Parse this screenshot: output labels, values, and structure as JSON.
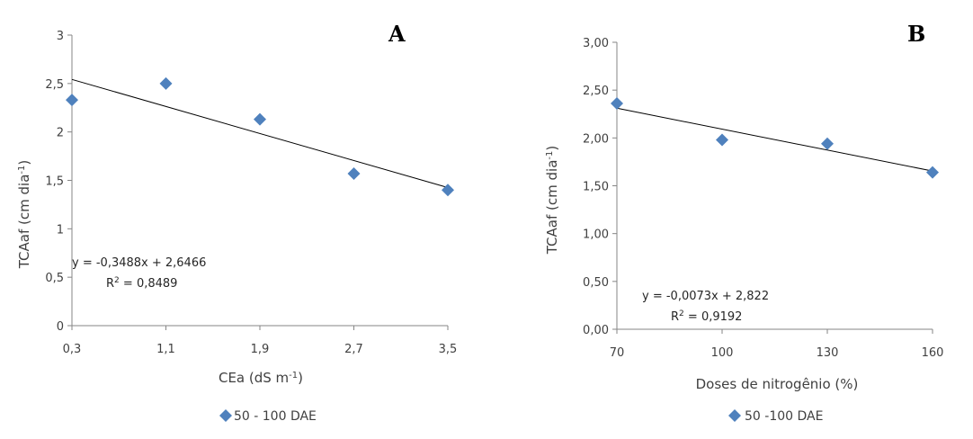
{
  "chart_data": [
    {
      "type": "scatter",
      "panel_letter": "A",
      "xlabel": "CEa (dS m",
      "xlabel_sup": "-1",
      "xlabel_end": ")",
      "ylabel": "TCAaf  (cm dia",
      "ylabel_sup": "-1",
      "ylabel_end": ")",
      "x_ticks": [
        "0,3",
        "1,1",
        "1,9",
        "2,7",
        "3,5"
      ],
      "x_tick_values": [
        0.3,
        1.1,
        1.9,
        2.7,
        3.5
      ],
      "y_ticks": [
        "0",
        "0,5",
        "1",
        "1,5",
        "2",
        "2,5",
        "3"
      ],
      "y_tick_values": [
        0,
        0.5,
        1,
        1.5,
        2,
        2.5,
        3
      ],
      "xlim": [
        0.3,
        3.5
      ],
      "ylim": [
        0,
        3
      ],
      "series": [
        {
          "name": "50 - 100 DAE",
          "color": "#4f81bd",
          "marker": "diamond",
          "x": [
            0.3,
            1.1,
            1.9,
            2.7,
            3.5
          ],
          "y": [
            2.33,
            2.5,
            2.13,
            1.57,
            1.4
          ]
        }
      ],
      "trendline": {
        "slope": -0.3488,
        "intercept": 2.6466,
        "x_from": 0.3,
        "x_to": 3.5
      },
      "equation": "y = -0,3488x + 2,6466",
      "r2_prefix": "R",
      "r2_sup": "2",
      "r2_value": " = 0,8489",
      "legend": "50 - 100 DAE",
      "legend_position": "bottom",
      "grid": false
    },
    {
      "type": "scatter",
      "panel_letter": "B",
      "xlabel": "Doses de nitrogênio (%)",
      "ylabel": "TCAaf  (cm dia",
      "ylabel_sup": "-1",
      "ylabel_end": ")",
      "x_ticks": [
        "70",
        "100",
        "130",
        "160"
      ],
      "x_tick_values": [
        70,
        100,
        130,
        160
      ],
      "y_ticks": [
        "0,00",
        "0,50",
        "1,00",
        "1,50",
        "2,00",
        "2,50",
        "3,00"
      ],
      "y_tick_values": [
        0,
        0.5,
        1,
        1.5,
        2,
        2.5,
        3
      ],
      "xlim": [
        70,
        160
      ],
      "ylim": [
        0,
        3
      ],
      "series": [
        {
          "name": "50 -100 DAE",
          "color": "#4f81bd",
          "marker": "diamond",
          "x": [
            70,
            100,
            130,
            160
          ],
          "y": [
            2.36,
            1.98,
            1.94,
            1.64
          ]
        }
      ],
      "trendline": {
        "slope": -0.0073,
        "intercept": 2.822,
        "x_from": 70,
        "x_to": 160
      },
      "equation": "y = -0,0073x + 2,822",
      "r2_prefix": "R",
      "r2_sup": "2",
      "r2_value": " = 0,9192",
      "legend": "50 -100 DAE",
      "legend_position": "bottom",
      "grid": false
    }
  ]
}
